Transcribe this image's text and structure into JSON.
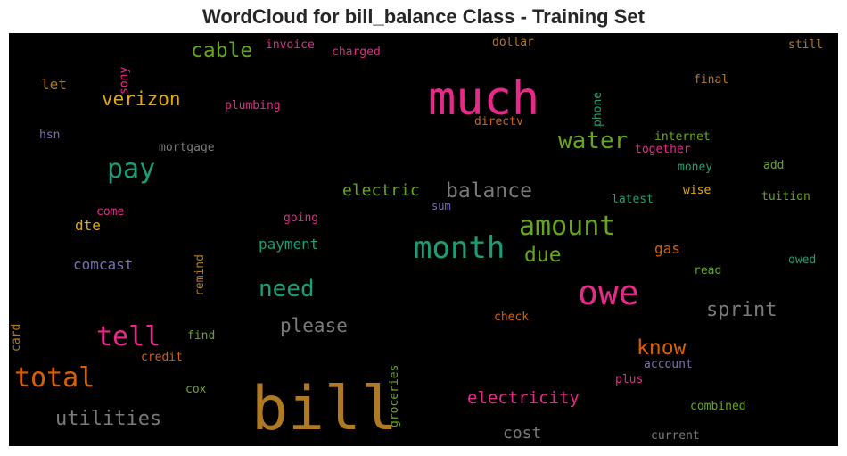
{
  "chart_data": {
    "type": "wordcloud",
    "title": "WordCloud for bill_balance Class - Training Set",
    "background": "#000000",
    "words": [
      {
        "text": "bill",
        "size": 68,
        "color": "#b07a22",
        "vertical": false
      },
      {
        "text": "much",
        "size": 52,
        "color": "#e7298a",
        "vertical": false
      },
      {
        "text": "owe",
        "size": 38,
        "color": "#e7298a",
        "vertical": false
      },
      {
        "text": "month",
        "size": 34,
        "color": "#1b9e77",
        "vertical": false
      },
      {
        "text": "amount",
        "size": 30,
        "color": "#66a61e",
        "vertical": false
      },
      {
        "text": "pay",
        "size": 30,
        "color": "#1b9e77",
        "vertical": false
      },
      {
        "text": "tell",
        "size": 30,
        "color": "#e7298a",
        "vertical": false
      },
      {
        "text": "total",
        "size": 30,
        "color": "#d95f02",
        "vertical": false
      },
      {
        "text": "water",
        "size": 26,
        "color": "#66a61e",
        "vertical": false
      },
      {
        "text": "need",
        "size": 26,
        "color": "#1b9e77",
        "vertical": false
      },
      {
        "text": "balance",
        "size": 23,
        "color": "#7a7a7a",
        "vertical": false
      },
      {
        "text": "cable",
        "size": 23,
        "color": "#66a61e",
        "vertical": false
      },
      {
        "text": "due",
        "size": 23,
        "color": "#66a61e",
        "vertical": false
      },
      {
        "text": "know",
        "size": 23,
        "color": "#d95f02",
        "vertical": false
      },
      {
        "text": "utilities",
        "size": 22,
        "color": "#7a7a7a",
        "vertical": false
      },
      {
        "text": "sprint",
        "size": 22,
        "color": "#7a7a7a",
        "vertical": false
      },
      {
        "text": "please",
        "size": 21,
        "color": "#7a7a7a",
        "vertical": false
      },
      {
        "text": "verizon",
        "size": 21,
        "color": "#e6ab02",
        "vertical": false
      },
      {
        "text": "electricity",
        "size": 19,
        "color": "#e7298a",
        "vertical": false
      },
      {
        "text": "electric",
        "size": 18,
        "color": "#66a61e",
        "vertical": false
      },
      {
        "text": "cost",
        "size": 18,
        "color": "#7a7a7a",
        "vertical": false
      },
      {
        "text": "payment",
        "size": 16,
        "color": "#1b9e77",
        "vertical": false
      },
      {
        "text": "comcast",
        "size": 16,
        "color": "#7570b3",
        "vertical": false
      },
      {
        "text": "dte",
        "size": 16,
        "color": "#e6ab02",
        "vertical": false
      },
      {
        "text": "gas",
        "size": 16,
        "color": "#d95f02",
        "vertical": false
      },
      {
        "text": "let",
        "size": 16,
        "color": "#b07a22",
        "vertical": false
      },
      {
        "text": "internet",
        "size": 13,
        "color": "#66a61e",
        "vertical": false
      },
      {
        "text": "mortgage",
        "size": 13,
        "color": "#7a7a7a",
        "vertical": false
      },
      {
        "text": "plumbing",
        "size": 13,
        "color": "#e7298a",
        "vertical": false
      },
      {
        "text": "invoice",
        "size": 13,
        "color": "#e7298a",
        "vertical": false
      },
      {
        "text": "charged",
        "size": 13,
        "color": "#e7298a",
        "vertical": false
      },
      {
        "text": "dollar",
        "size": 13,
        "color": "#b07a22",
        "vertical": false
      },
      {
        "text": "still",
        "size": 13,
        "color": "#b07a22",
        "vertical": false
      },
      {
        "text": "final",
        "size": 13,
        "color": "#b07a22",
        "vertical": false
      },
      {
        "text": "directv",
        "size": 13,
        "color": "#d95f02",
        "vertical": false
      },
      {
        "text": "hsn",
        "size": 13,
        "color": "#7570b3",
        "vertical": false
      },
      {
        "text": "together",
        "size": 13,
        "color": "#e7298a",
        "vertical": false
      },
      {
        "text": "money",
        "size": 13,
        "color": "#1b9e77",
        "vertical": false
      },
      {
        "text": "add",
        "size": 13,
        "color": "#66a61e",
        "vertical": false
      },
      {
        "text": "wise",
        "size": 13,
        "color": "#e6ab02",
        "vertical": false
      },
      {
        "text": "tuition",
        "size": 13,
        "color": "#66a61e",
        "vertical": false
      },
      {
        "text": "latest",
        "size": 13,
        "color": "#1b9e77",
        "vertical": false
      },
      {
        "text": "sum",
        "size": 12,
        "color": "#7570b3",
        "vertical": false
      },
      {
        "text": "come",
        "size": 13,
        "color": "#e7298a",
        "vertical": false
      },
      {
        "text": "going",
        "size": 13,
        "color": "#e7298a",
        "vertical": false
      },
      {
        "text": "read",
        "size": 13,
        "color": "#66a61e",
        "vertical": false
      },
      {
        "text": "owed",
        "size": 13,
        "color": "#1b9e77",
        "vertical": false
      },
      {
        "text": "check",
        "size": 13,
        "color": "#d95f02",
        "vertical": false
      },
      {
        "text": "find",
        "size": 13,
        "color": "#66a61e",
        "vertical": false
      },
      {
        "text": "credit",
        "size": 13,
        "color": "#d95f02",
        "vertical": false
      },
      {
        "text": "account",
        "size": 13,
        "color": "#7570b3",
        "vertical": false
      },
      {
        "text": "plus",
        "size": 13,
        "color": "#e7298a",
        "vertical": false
      },
      {
        "text": "cox",
        "size": 13,
        "color": "#66a61e",
        "vertical": false
      },
      {
        "text": "combined",
        "size": 13,
        "color": "#66a61e",
        "vertical": false
      },
      {
        "text": "current",
        "size": 13,
        "color": "#7a7a7a",
        "vertical": false
      },
      {
        "text": "sony",
        "size": 13,
        "color": "#e7298a",
        "vertical": true
      },
      {
        "text": "phone",
        "size": 13,
        "color": "#1b9e77",
        "vertical": true
      },
      {
        "text": "remind",
        "size": 13,
        "color": "#b07a22",
        "vertical": true
      },
      {
        "text": "card",
        "size": 13,
        "color": "#b07a22",
        "vertical": true
      },
      {
        "text": "groceries",
        "size": 13,
        "color": "#66a61e",
        "vertical": true
      }
    ]
  }
}
